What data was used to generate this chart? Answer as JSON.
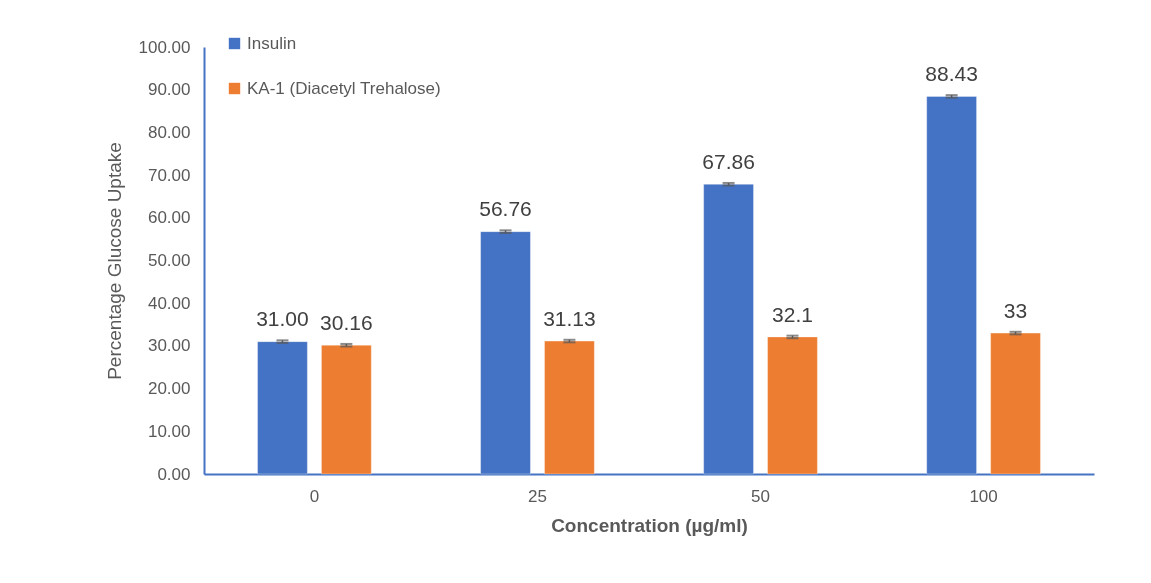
{
  "chart_data": {
    "type": "bar",
    "xlabel": "Concentration (µg/ml)",
    "ylabel": "Percentage Glucose Uptake",
    "categories": [
      "0",
      "25",
      "50",
      "100"
    ],
    "series": [
      {
        "name": "Insulin",
        "color": "#4472c4",
        "values": [
          31.0,
          56.76,
          67.86,
          88.43
        ],
        "errors": [
          0.3,
          0.3,
          0.3,
          0.3
        ],
        "value_labels": [
          "31.00",
          "56.76",
          "67.86",
          "88.43"
        ]
      },
      {
        "name": "KA-1 (Diacetyl Trehalose)",
        "color": "#ed7d31",
        "values": [
          30.16,
          31.13,
          32.1,
          33
        ],
        "errors": [
          0.3,
          0.3,
          0.3,
          0.3
        ],
        "value_labels": [
          "30.16",
          "31.13",
          "32.1",
          "33"
        ]
      }
    ],
    "ylim": [
      0,
      100
    ],
    "yticks": [
      {
        "value": 0,
        "label": "0.00"
      },
      {
        "value": 10,
        "label": "10.00"
      },
      {
        "value": 20,
        "label": "20.00"
      },
      {
        "value": 30,
        "label": "30.00"
      },
      {
        "value": 40,
        "label": "40.00"
      },
      {
        "value": 50,
        "label": "50.00"
      },
      {
        "value": 60,
        "label": "60.00"
      },
      {
        "value": 70,
        "label": "70.00"
      },
      {
        "value": 80,
        "label": "80.00"
      },
      {
        "value": 90,
        "label": "90.00"
      },
      {
        "value": 100,
        "label": "100.00"
      }
    ],
    "legend": "top left"
  }
}
